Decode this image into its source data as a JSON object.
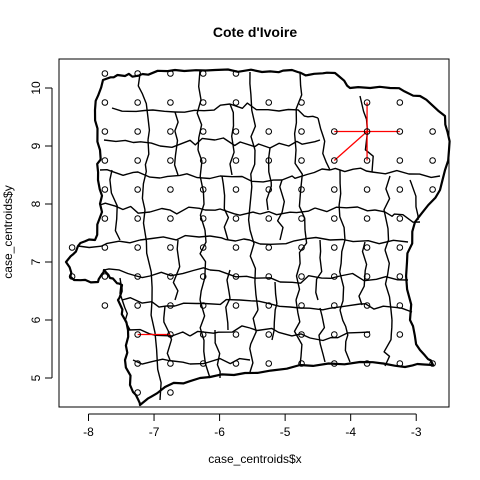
{
  "chart_data": {
    "type": "scatter",
    "title": "Cote d'Ivoire",
    "xlabel": "case_centroids$x",
    "ylabel": "case_centroids$y",
    "xlim": [
      -8.45,
      -2.5
    ],
    "ylim": [
      4.5,
      10.5
    ],
    "x_ticks": [
      -8,
      -7,
      -6,
      -5,
      -4,
      -3
    ],
    "y_ticks": [
      5,
      6,
      7,
      8,
      9,
      10
    ],
    "grid": false,
    "colors": {
      "points": "#000000",
      "boundaries": "#000000",
      "links": "#ff0000"
    },
    "points": [
      [
        -7.75,
        10.25
      ],
      [
        -7.25,
        10.25
      ],
      [
        -6.75,
        10.25
      ],
      [
        -6.25,
        10.25
      ],
      [
        -5.75,
        10.25
      ],
      [
        -7.75,
        9.75
      ],
      [
        -7.25,
        9.75
      ],
      [
        -6.75,
        9.75
      ],
      [
        -6.25,
        9.75
      ],
      [
        -5.75,
        9.75
      ],
      [
        -5.25,
        9.75
      ],
      [
        -4.75,
        9.75
      ],
      [
        -3.75,
        9.75
      ],
      [
        -3.25,
        9.75
      ],
      [
        -7.75,
        9.25
      ],
      [
        -7.25,
        9.25
      ],
      [
        -6.75,
        9.25
      ],
      [
        -6.25,
        9.25
      ],
      [
        -5.75,
        9.25
      ],
      [
        -5.25,
        9.25
      ],
      [
        -4.75,
        9.25
      ],
      [
        -4.25,
        9.25
      ],
      [
        -3.75,
        9.25
      ],
      [
        -3.25,
        9.25
      ],
      [
        -2.75,
        9.25
      ],
      [
        -7.75,
        8.75
      ],
      [
        -7.25,
        8.75
      ],
      [
        -6.75,
        8.75
      ],
      [
        -6.25,
        8.75
      ],
      [
        -5.75,
        8.75
      ],
      [
        -5.25,
        8.75
      ],
      [
        -4.75,
        8.75
      ],
      [
        -4.25,
        8.75
      ],
      [
        -3.75,
        8.75
      ],
      [
        -3.25,
        8.75
      ],
      [
        -2.75,
        8.75
      ],
      [
        -7.75,
        8.25
      ],
      [
        -7.25,
        8.25
      ],
      [
        -6.75,
        8.25
      ],
      [
        -6.25,
        8.25
      ],
      [
        -5.75,
        8.25
      ],
      [
        -5.25,
        8.25
      ],
      [
        -4.75,
        8.25
      ],
      [
        -4.25,
        8.25
      ],
      [
        -3.75,
        8.25
      ],
      [
        -3.25,
        8.25
      ],
      [
        -2.75,
        8.25
      ],
      [
        -7.75,
        7.75
      ],
      [
        -7.25,
        7.75
      ],
      [
        -6.75,
        7.75
      ],
      [
        -6.25,
        7.75
      ],
      [
        -5.75,
        7.75
      ],
      [
        -5.25,
        7.75
      ],
      [
        -4.75,
        7.75
      ],
      [
        -4.25,
        7.75
      ],
      [
        -3.75,
        7.75
      ],
      [
        -3.25,
        7.75
      ],
      [
        -8.25,
        7.25
      ],
      [
        -7.75,
        7.25
      ],
      [
        -7.25,
        7.25
      ],
      [
        -6.75,
        7.25
      ],
      [
        -6.25,
        7.25
      ],
      [
        -5.75,
        7.25
      ],
      [
        -5.25,
        7.25
      ],
      [
        -4.75,
        7.25
      ],
      [
        -4.25,
        7.25
      ],
      [
        -3.75,
        7.25
      ],
      [
        -3.25,
        7.25
      ],
      [
        -8.25,
        6.75
      ],
      [
        -7.75,
        6.75
      ],
      [
        -7.25,
        6.75
      ],
      [
        -6.75,
        6.75
      ],
      [
        -6.25,
        6.75
      ],
      [
        -5.75,
        6.75
      ],
      [
        -5.25,
        6.75
      ],
      [
        -4.75,
        6.75
      ],
      [
        -4.25,
        6.75
      ],
      [
        -3.75,
        6.75
      ],
      [
        -3.25,
        6.75
      ],
      [
        -7.75,
        6.25
      ],
      [
        -7.25,
        6.25
      ],
      [
        -6.75,
        6.25
      ],
      [
        -6.25,
        6.25
      ],
      [
        -5.75,
        6.25
      ],
      [
        -5.25,
        6.25
      ],
      [
        -4.75,
        6.25
      ],
      [
        -4.25,
        6.25
      ],
      [
        -3.75,
        6.25
      ],
      [
        -3.25,
        6.25
      ],
      [
        -7.25,
        5.75
      ],
      [
        -6.75,
        5.75
      ],
      [
        -6.25,
        5.75
      ],
      [
        -5.75,
        5.75
      ],
      [
        -5.25,
        5.75
      ],
      [
        -4.75,
        5.75
      ],
      [
        -4.25,
        5.75
      ],
      [
        -3.75,
        5.75
      ],
      [
        -3.25,
        5.75
      ],
      [
        -7.25,
        5.25
      ],
      [
        -6.75,
        5.25
      ],
      [
        -6.25,
        5.25
      ],
      [
        -5.75,
        5.25
      ],
      [
        -5.25,
        5.25
      ],
      [
        -4.75,
        5.25
      ],
      [
        -4.25,
        5.25
      ],
      [
        -3.75,
        5.25
      ],
      [
        -3.25,
        5.25
      ],
      [
        -2.75,
        5.25
      ],
      [
        -7.25,
        4.75
      ],
      [
        -6.75,
        4.75
      ]
    ],
    "links": [
      [
        [
          -4.25,
          9.25
        ],
        [
          -3.75,
          9.25
        ]
      ],
      [
        [
          -3.75,
          9.25
        ],
        [
          -3.25,
          9.25
        ]
      ],
      [
        [
          -3.75,
          9.75
        ],
        [
          -3.75,
          9.25
        ]
      ],
      [
        [
          -3.75,
          9.25
        ],
        [
          -3.75,
          8.75
        ]
      ],
      [
        [
          -4.25,
          8.75
        ],
        [
          -3.75,
          9.25
        ]
      ],
      [
        [
          -7.25,
          5.75
        ],
        [
          -6.75,
          5.75
        ]
      ]
    ]
  }
}
